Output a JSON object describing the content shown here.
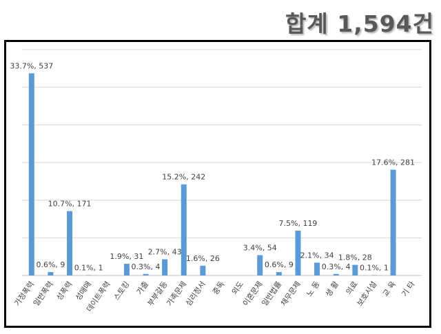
{
  "header": {
    "total_label": "합계 1,594건"
  },
  "colors": {
    "bar": "#5b9bd5",
    "grid": "#d9d9d9",
    "text": "#404040",
    "frame": "#000000"
  },
  "chart_data": {
    "type": "bar",
    "title": "",
    "xlabel": "",
    "ylabel": "",
    "ylim": [
      0,
      600
    ],
    "grid": true,
    "legend": "none",
    "categories": [
      "가정폭력",
      "일반폭력",
      "성폭력",
      "성매매",
      "데이트폭력",
      "스토킹",
      "가출",
      "부부갈등",
      "가족문제",
      "심리정서",
      "중독",
      "외도",
      "이혼문제",
      "일반법률",
      "채무문제",
      "노 동",
      "생 활",
      "의료",
      "보호시설",
      "교 육",
      "기 타"
    ],
    "values": [
      537,
      9,
      171,
      1,
      null,
      31,
      4,
      43,
      242,
      26,
      null,
      null,
      54,
      9,
      119,
      34,
      4,
      28,
      1,
      281,
      null
    ],
    "data_labels": [
      "33.7%, 537",
      "0.6%, 9",
      "10.7%, 171",
      "0.1%, 1",
      "",
      "1.9%, 31",
      "0.3%, 4",
      "2.7%, 43",
      "15.2%, 242",
      "1.6%, 26",
      "",
      "",
      "3.4%, 54",
      "0.6%, 9",
      "7.5%, 119",
      "2.1%, 34",
      "0.3%, 4",
      "1.8%, 28",
      "0.1%, 1",
      "17.6%, 281",
      ""
    ]
  }
}
